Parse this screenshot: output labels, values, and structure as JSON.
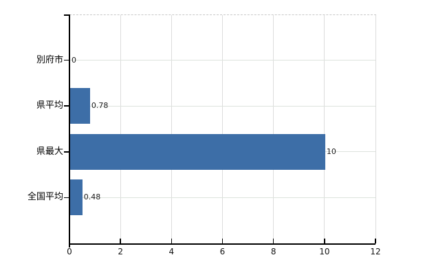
{
  "window": {
    "background": "#ffffff"
  },
  "chart_data": {
    "type": "bar",
    "orientation": "horizontal",
    "title": "",
    "xlabel": "",
    "ylabel": "",
    "categories": [
      "別府市",
      "県平均",
      "県最大",
      "全国平均"
    ],
    "values": [
      0,
      0.78,
      10,
      0.48
    ],
    "value_labels": [
      "0",
      "0.78",
      "10",
      "0.48"
    ],
    "x_tick_labels": [
      "0",
      "2",
      "4",
      "6",
      "8",
      "10",
      "12"
    ],
    "x_tick_values": [
      0,
      2,
      4,
      6,
      8,
      10,
      12
    ],
    "xlim": [
      0,
      12
    ],
    "grid": true,
    "legend_position": "none"
  },
  "colors": {
    "bar": "#3d6ea7",
    "axis": "#000000",
    "grid_vertical": "#dcdcdc",
    "grid_horizontal": "#dde3dd",
    "border_dashed": "#c9c9c9",
    "value_text": "#1a1a1a",
    "category_text": "#000000",
    "tick_text": "#111111",
    "background": "#ffffff"
  }
}
